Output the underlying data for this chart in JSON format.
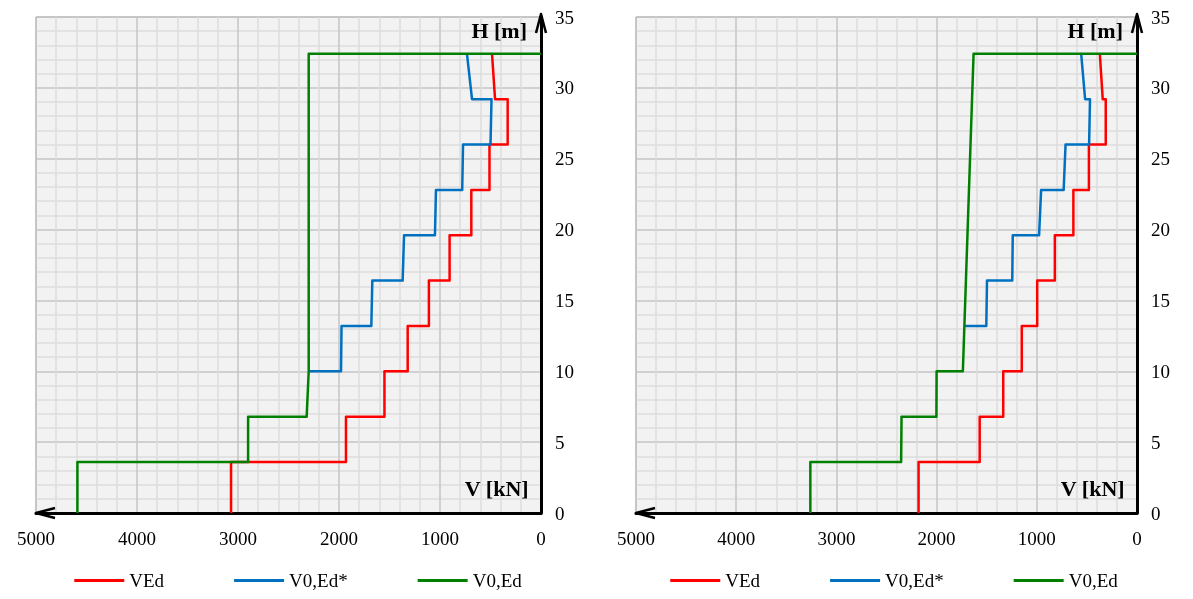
{
  "chart_data": [
    {
      "type": "line",
      "xlabel": "V [kN]",
      "ylabel": "H [m]",
      "xlim": [
        5000,
        0
      ],
      "xticks": [
        5000,
        4000,
        3000,
        2000,
        1000,
        0
      ],
      "ylim": [
        0,
        35
      ],
      "yticks": [
        0,
        5,
        10,
        15,
        20,
        25,
        30,
        35
      ],
      "grid": true,
      "legend": "bottom",
      "marker": "none",
      "line_style": "solid",
      "series": [
        {
          "name": "VEd",
          "color": "#ff0000",
          "x": [
            3069,
            3069,
            1931,
            1931,
            1550,
            1550,
            1320,
            1320,
            1110,
            1110,
            905,
            905,
            690,
            690,
            510,
            510,
            330,
            330,
            455,
            485
          ],
          "values": [
            0,
            3.6,
            3.6,
            6.8,
            6.8,
            10,
            10,
            13.2,
            13.2,
            16.4,
            16.4,
            19.6,
            19.6,
            22.8,
            22.8,
            26,
            26,
            29.2,
            29.2,
            32.4
          ]
        },
        {
          "name": "V0,Ed*",
          "color": "#0070c0",
          "x": [
            2300,
            1980,
            1975,
            1680,
            1670,
            1370,
            1356,
            1050,
            1040,
            780,
            772,
            500,
            490,
            683,
            733
          ],
          "values": [
            10,
            10,
            13.2,
            13.2,
            16.4,
            16.4,
            19.6,
            19.6,
            22.8,
            22.8,
            26,
            26,
            29.2,
            29.2,
            32.4
          ]
        },
        {
          "name": "V0,Ed",
          "color": "#008000",
          "x": [
            4590,
            4590,
            2900,
            2900,
            2320,
            2300,
            2300,
            0
          ],
          "values": [
            0,
            3.6,
            3.6,
            6.8,
            6.8,
            10,
            32.4,
            32.4
          ]
        }
      ]
    },
    {
      "type": "line",
      "xlabel": "V [kN]",
      "ylabel": "H [m]",
      "xlim": [
        5000,
        0
      ],
      "xticks": [
        5000,
        4000,
        3000,
        2000,
        1000,
        0
      ],
      "ylim": [
        0,
        35
      ],
      "yticks": [
        0,
        5,
        10,
        15,
        20,
        25,
        30,
        35
      ],
      "grid": true,
      "legend": "bottom",
      "marker": "none",
      "line_style": "solid",
      "series": [
        {
          "name": "VEd",
          "color": "#ff0000",
          "x": [
            2180,
            2180,
            1570,
            1570,
            1335,
            1335,
            1150,
            1150,
            996,
            996,
            820,
            820,
            635,
            635,
            480,
            480,
            312,
            312,
            342,
            371
          ],
          "values": [
            0,
            3.6,
            3.6,
            6.8,
            6.8,
            10,
            10,
            13.2,
            13.2,
            16.4,
            16.4,
            19.6,
            19.6,
            22.8,
            22.8,
            26,
            26,
            29.2,
            29.2,
            32.4
          ]
        },
        {
          "name": "V0,Ed*",
          "color": "#0070c0",
          "x": [
            1720,
            1504,
            1497,
            1245,
            1240,
            977,
            957,
            732,
            713,
            478,
            469,
            518,
            557
          ],
          "values": [
            13.2,
            13.2,
            16.4,
            16.4,
            19.6,
            19.6,
            22.8,
            22.8,
            26,
            26,
            29.2,
            29.2,
            32.4
          ]
        },
        {
          "name": "V0,Ed",
          "color": "#008000",
          "x": [
            3260,
            3260,
            2354,
            2350,
            2002,
            2000,
            1738,
            1631,
            0
          ],
          "values": [
            0,
            3.6,
            3.6,
            6.8,
            6.8,
            10,
            10,
            32.4,
            32.4
          ]
        }
      ]
    }
  ]
}
